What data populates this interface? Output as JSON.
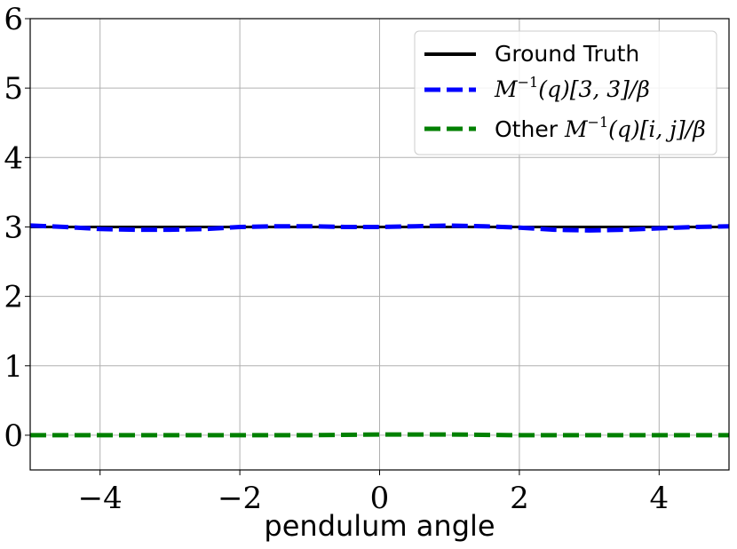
{
  "chart_data": {
    "type": "line",
    "title": "",
    "xlabel": "pendulum angle",
    "ylabel": "",
    "xlim": [
      -5,
      5
    ],
    "ylim": [
      -0.5,
      6
    ],
    "xticks": [
      -4,
      -2,
      0,
      2,
      4
    ],
    "xtick_labels": [
      "−4",
      "−2",
      "0",
      "2",
      "4"
    ],
    "yticks": [
      0,
      1,
      2,
      3,
      4,
      5,
      6
    ],
    "ytick_labels": [
      "0",
      "1",
      "2",
      "3",
      "4",
      "5",
      "6"
    ],
    "grid": true,
    "legend_position": "top-right",
    "series": [
      {
        "name": "Ground Truth",
        "color": "#000000",
        "style": "solid",
        "x": [
          -5,
          -4,
          -3,
          -2,
          -1,
          0,
          1,
          2,
          3,
          4,
          5
        ],
        "y": [
          3,
          3,
          3,
          3,
          3,
          3,
          3,
          3,
          3,
          3,
          3
        ]
      },
      {
        "name": "M⁻¹(q)[3,3]/β",
        "color": "#0000ff",
        "style": "dashed",
        "x": [
          -5,
          -4.5,
          -4,
          -3.5,
          -3,
          -2.5,
          -2,
          -1.5,
          -1,
          -0.5,
          0,
          0.5,
          1,
          1.5,
          2,
          2.5,
          3,
          3.5,
          4,
          4.5,
          5
        ],
        "y": [
          3.02,
          3.0,
          2.97,
          2.96,
          2.96,
          2.97,
          3.0,
          3.01,
          3.01,
          3.0,
          3.0,
          3.01,
          3.02,
          3.01,
          2.99,
          2.96,
          2.95,
          2.96,
          2.98,
          3.0,
          3.01
        ]
      },
      {
        "name": "Other M⁻¹(q)[i,j]/β",
        "color": "#008000",
        "style": "dashed",
        "x": [
          -5,
          -4,
          -3,
          -2,
          -1,
          0,
          1,
          2,
          3,
          4,
          5
        ],
        "y": [
          0.0,
          0.0,
          0.0,
          0.0,
          0.0,
          0.01,
          0.01,
          0.0,
          0.0,
          0.0,
          0.0
        ]
      }
    ],
    "legend": {
      "ground_truth": "Ground Truth",
      "blue_math": "M",
      "blue_sup": "−1",
      "blue_rest": "(q)[3, 3]/β",
      "green_prefix": "Other ",
      "green_math": "M",
      "green_sup": "−1",
      "green_rest": "(q)[i, j]/β"
    }
  }
}
